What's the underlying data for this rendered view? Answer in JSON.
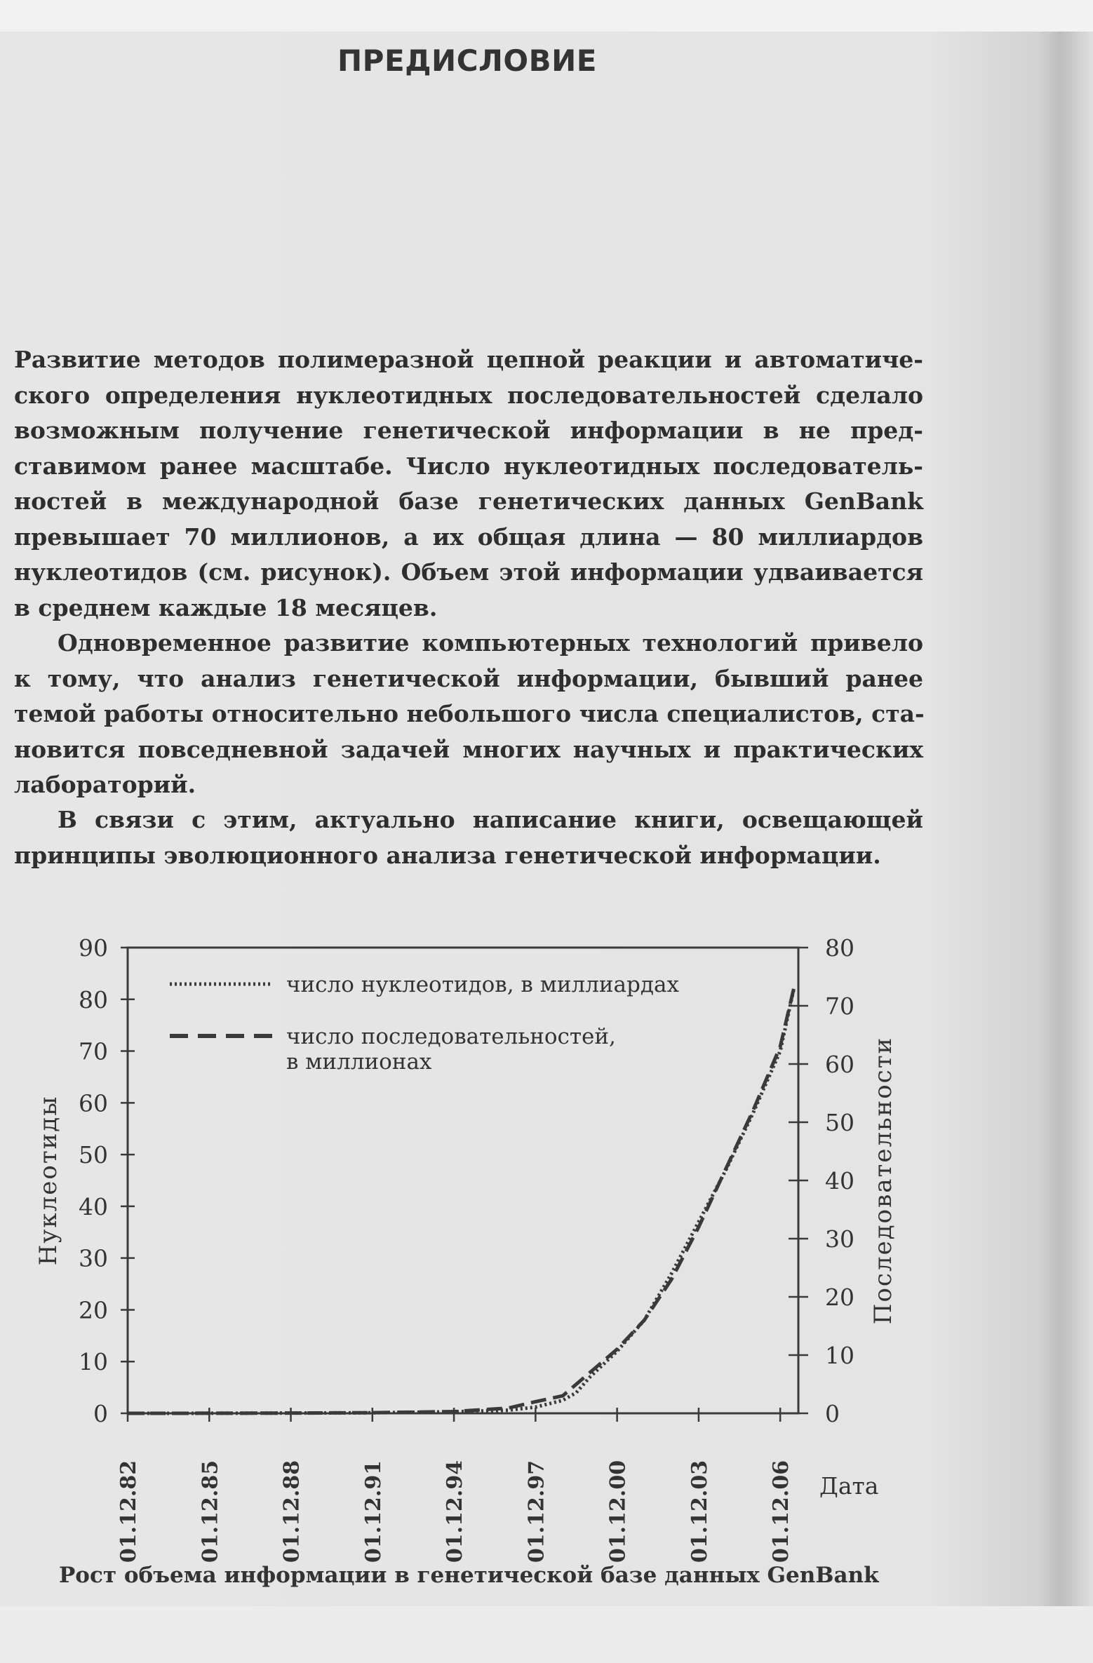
{
  "page": {
    "title": "ПРЕДИСЛОВИЕ",
    "paragraphs": [
      {
        "lines": [
          "Развитие методов полимеразной цепной реакции и автоматиче-",
          "ского определения нуклеотидных последовательностей сделало",
          "возможным получение генетической информации в не пред-",
          "ставимом ранее масштабе. Число нуклеотидных последователь-",
          "ностей в международной базе генетических данных GenBank",
          "превышает 70 миллионов, а их общая длина — 80 миллиардов",
          "нуклеотидов (см. рисунок). Объем этой информации удваивается",
          "в среднем каждые 18 месяцев."
        ]
      },
      {
        "lines": [
          "Одновременное развитие компьютерных технологий привело",
          "к тому, что анализ генетической информации, бывший ранее",
          "темой работы относительно небольшого числа специалистов, ста-",
          "новится повседневной задачей многих научных и практических",
          "лабораторий."
        ]
      },
      {
        "lines": [
          "В связи с этим, актуально написание книги, освещающей",
          "принципы эволюционного анализа генетической информации."
        ]
      }
    ],
    "caption": "Рост объема информации в генетической базе данных GenBank"
  },
  "chart_data": {
    "type": "line",
    "xlabel": "Дата",
    "ylabel_left": "Нуклеотиды",
    "ylabel_right": "Последовательности",
    "ylim_left": [
      0,
      90
    ],
    "ylim_right": [
      0,
      80
    ],
    "yticks_left": [
      "0",
      "10",
      "20",
      "30",
      "40",
      "50",
      "60",
      "70",
      "80",
      "90"
    ],
    "yticks_right": [
      "0",
      "10",
      "20",
      "30",
      "40",
      "50",
      "60",
      "70",
      "80"
    ],
    "xticks": [
      "01.12.82",
      "01.12.85",
      "01.12.88",
      "01.12.91",
      "01.12.94",
      "01.12.97",
      "01.12.00",
      "01.12.03",
      "01.12.06"
    ],
    "xlim": [
      "1982-12",
      "2007-08"
    ],
    "grid": false,
    "legend_position": "top-left",
    "series": [
      {
        "name": "число нуклеотидов, в миллиардах",
        "axis": "left",
        "style": "dotted",
        "x": [
          "1982-12",
          "1985-12",
          "1988-12",
          "1991-12",
          "1994-12",
          "1996-12",
          "1997-12",
          "1998-12",
          "1999-06",
          "1999-12",
          "2000-12",
          "2001-12",
          "2002-12",
          "2003-12",
          "2004-12",
          "2005-12",
          "2006-12",
          "2007-06"
        ],
        "y": [
          0,
          0.01,
          0.05,
          0.1,
          0.3,
          0.6,
          1.2,
          2.5,
          4,
          7,
          12,
          18,
          27,
          37,
          47,
          58,
          70,
          82
        ]
      },
      {
        "name": "число последовательностей, в миллионах",
        "axis": "right",
        "style": "dashed",
        "x": [
          "1982-12",
          "1985-12",
          "1988-12",
          "1991-12",
          "1994-12",
          "1996-12",
          "1997-12",
          "1998-12",
          "1999-06",
          "1999-12",
          "2000-12",
          "2001-12",
          "2002-12",
          "2003-12",
          "2004-12",
          "2005-12",
          "2006-12",
          "2007-06"
        ],
        "y": [
          0,
          0.01,
          0.04,
          0.1,
          0.3,
          0.9,
          2,
          3,
          5,
          7,
          11,
          16,
          23,
          32,
          42,
          52,
          63,
          73
        ]
      }
    ],
    "legend": [
      "число нуклеотидов, в миллиардах",
      "число последовательностей,",
      "в миллионах"
    ],
    "colors": {
      "ink": "#3a3a3a"
    }
  }
}
